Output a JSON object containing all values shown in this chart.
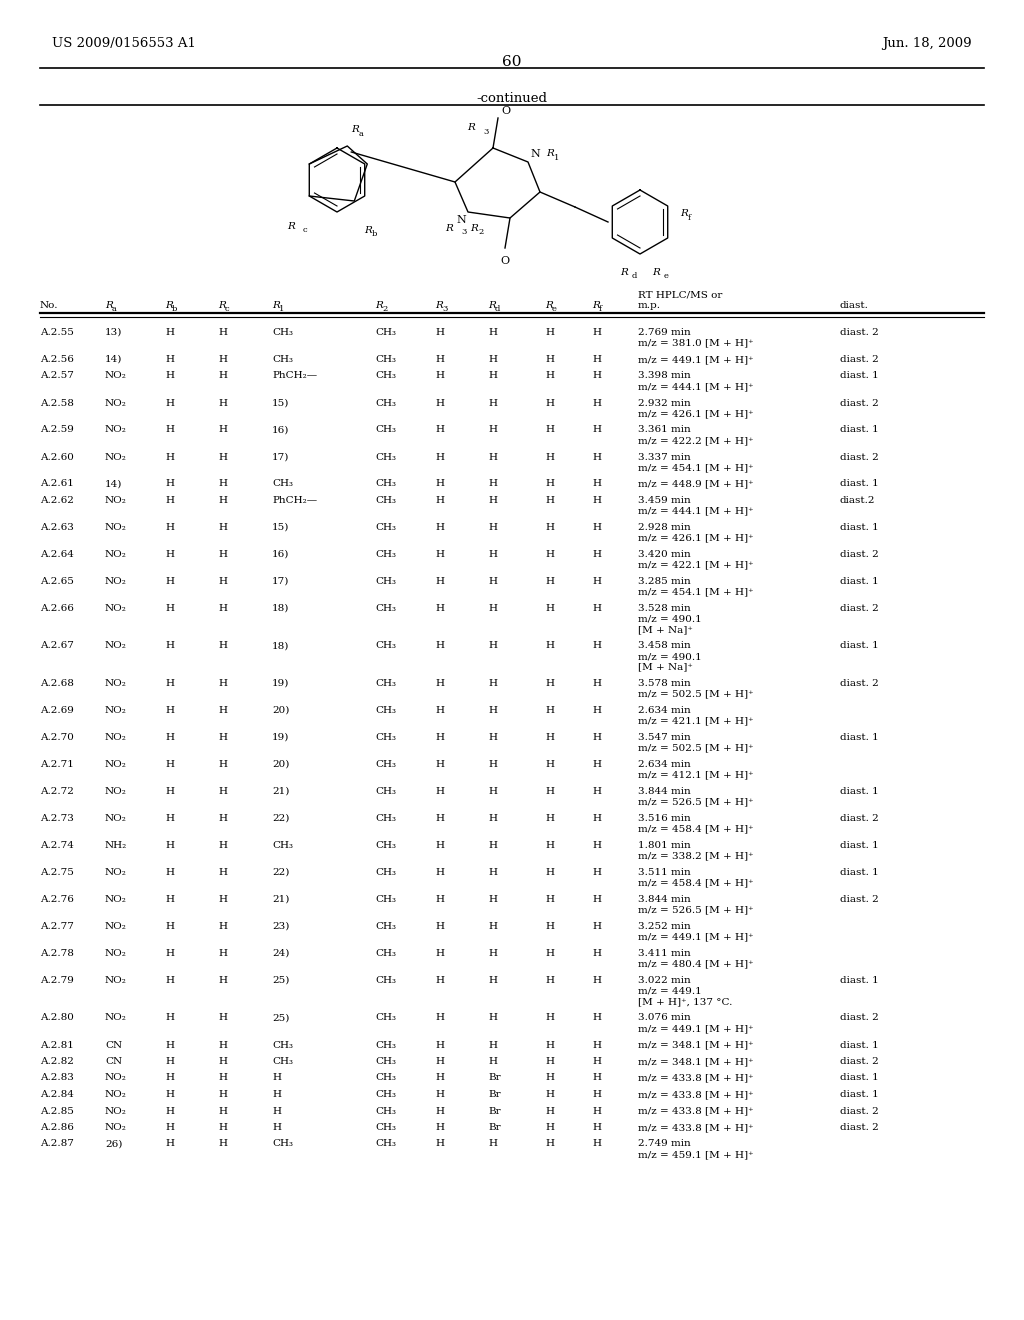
{
  "header_left": "US 2009/0156553 A1",
  "header_right": "Jun. 18, 2009",
  "page_number": "60",
  "continued_text": "-continued",
  "rows": [
    [
      "A.2.55",
      "13)",
      "H",
      "H",
      "CH₃",
      "CH₃",
      "H",
      "H",
      "H",
      "H",
      "2.769 min\nm/z = 381.0 [M + H]⁺",
      "diast. 2"
    ],
    [
      "A.2.56",
      "14)",
      "H",
      "H",
      "CH₃",
      "CH₃",
      "H",
      "H",
      "H",
      "H",
      "m/z = 449.1 [M + H]⁺",
      "diast. 2"
    ],
    [
      "A.2.57",
      "NO₂",
      "H",
      "H",
      "PhCH₂—",
      "CH₃",
      "H",
      "H",
      "H",
      "H",
      "3.398 min\nm/z = 444.1 [M + H]⁺",
      "diast. 1"
    ],
    [
      "A.2.58",
      "NO₂",
      "H",
      "H",
      "15)",
      "CH₃",
      "H",
      "H",
      "H",
      "H",
      "2.932 min\nm/z = 426.1 [M + H]⁺",
      "diast. 2"
    ],
    [
      "A.2.59",
      "NO₂",
      "H",
      "H",
      "16)",
      "CH₃",
      "H",
      "H",
      "H",
      "H",
      "3.361 min\nm/z = 422.2 [M + H]⁺",
      "diast. 1"
    ],
    [
      "A.2.60",
      "NO₂",
      "H",
      "H",
      "17)",
      "CH₃",
      "H",
      "H",
      "H",
      "H",
      "3.337 min\nm/z = 454.1 [M + H]⁺",
      "diast. 2"
    ],
    [
      "A.2.61",
      "14)",
      "H",
      "H",
      "CH₃",
      "CH₃",
      "H",
      "H",
      "H",
      "H",
      "m/z = 448.9 [M + H]⁺",
      "diast. 1"
    ],
    [
      "A.2.62",
      "NO₂",
      "H",
      "H",
      "PhCH₂—",
      "CH₃",
      "H",
      "H",
      "H",
      "H",
      "3.459 min\nm/z = 444.1 [M + H]⁺",
      "diast.2"
    ],
    [
      "A.2.63",
      "NO₂",
      "H",
      "H",
      "15)",
      "CH₃",
      "H",
      "H",
      "H",
      "H",
      "2.928 min\nm/z = 426.1 [M + H]⁺",
      "diast. 1"
    ],
    [
      "A.2.64",
      "NO₂",
      "H",
      "H",
      "16)",
      "CH₃",
      "H",
      "H",
      "H",
      "H",
      "3.420 min\nm/z = 422.1 [M + H]⁺",
      "diast. 2"
    ],
    [
      "A.2.65",
      "NO₂",
      "H",
      "H",
      "17)",
      "CH₃",
      "H",
      "H",
      "H",
      "H",
      "3.285 min\nm/z = 454.1 [M + H]⁺",
      "diast. 1"
    ],
    [
      "A.2.66",
      "NO₂",
      "H",
      "H",
      "18)",
      "CH₃",
      "H",
      "H",
      "H",
      "H",
      "3.528 min\nm/z = 490.1\n[M + Na]⁺",
      "diast. 2"
    ],
    [
      "A.2.67",
      "NO₂",
      "H",
      "H",
      "18)",
      "CH₃",
      "H",
      "H",
      "H",
      "H",
      "3.458 min\nm/z = 490.1\n[M + Na]⁺",
      "diast. 1"
    ],
    [
      "A.2.68",
      "NO₂",
      "H",
      "H",
      "19)",
      "CH₃",
      "H",
      "H",
      "H",
      "H",
      "3.578 min\nm/z = 502.5 [M + H]⁺",
      "diast. 2"
    ],
    [
      "A.2.69",
      "NO₂",
      "H",
      "H",
      "20)",
      "CH₃",
      "H",
      "H",
      "H",
      "H",
      "2.634 min\nm/z = 421.1 [M + H]⁺",
      ""
    ],
    [
      "A.2.70",
      "NO₂",
      "H",
      "H",
      "19)",
      "CH₃",
      "H",
      "H",
      "H",
      "H",
      "3.547 min\nm/z = 502.5 [M + H]⁺",
      "diast. 1"
    ],
    [
      "A.2.71",
      "NO₂",
      "H",
      "H",
      "20)",
      "CH₃",
      "H",
      "H",
      "H",
      "H",
      "2.634 min\nm/z = 412.1 [M + H]⁺",
      ""
    ],
    [
      "A.2.72",
      "NO₂",
      "H",
      "H",
      "21)",
      "CH₃",
      "H",
      "H",
      "H",
      "H",
      "3.844 min\nm/z = 526.5 [M + H]⁺",
      "diast. 1"
    ],
    [
      "A.2.73",
      "NO₂",
      "H",
      "H",
      "22)",
      "CH₃",
      "H",
      "H",
      "H",
      "H",
      "3.516 min\nm/z = 458.4 [M + H]⁺",
      "diast. 2"
    ],
    [
      "A.2.74",
      "NH₂",
      "H",
      "H",
      "CH₃",
      "CH₃",
      "H",
      "H",
      "H",
      "H",
      "1.801 min\nm/z = 338.2 [M + H]⁺",
      "diast. 1"
    ],
    [
      "A.2.75",
      "NO₂",
      "H",
      "H",
      "22)",
      "CH₃",
      "H",
      "H",
      "H",
      "H",
      "3.511 min\nm/z = 458.4 [M + H]⁺",
      "diast. 1"
    ],
    [
      "A.2.76",
      "NO₂",
      "H",
      "H",
      "21)",
      "CH₃",
      "H",
      "H",
      "H",
      "H",
      "3.844 min\nm/z = 526.5 [M + H]⁺",
      "diast. 2"
    ],
    [
      "A.2.77",
      "NO₂",
      "H",
      "H",
      "23)",
      "CH₃",
      "H",
      "H",
      "H",
      "H",
      "3.252 min\nm/z = 449.1 [M + H]⁺",
      ""
    ],
    [
      "A.2.78",
      "NO₂",
      "H",
      "H",
      "24)",
      "CH₃",
      "H",
      "H",
      "H",
      "H",
      "3.411 min\nm/z = 480.4 [M + H]⁺",
      ""
    ],
    [
      "A.2.79",
      "NO₂",
      "H",
      "H",
      "25)",
      "CH₃",
      "H",
      "H",
      "H",
      "H",
      "3.022 min\nm/z = 449.1\n[M + H]⁺, 137 °C.",
      "diast. 1"
    ],
    [
      "A.2.80",
      "NO₂",
      "H",
      "H",
      "25)",
      "CH₃",
      "H",
      "H",
      "H",
      "H",
      "3.076 min\nm/z = 449.1 [M + H]⁺",
      "diast. 2"
    ],
    [
      "A.2.81",
      "CN",
      "H",
      "H",
      "CH₃",
      "CH₃",
      "H",
      "H",
      "H",
      "H",
      "m/z = 348.1 [M + H]⁺",
      "diast. 1"
    ],
    [
      "A.2.82",
      "CN",
      "H",
      "H",
      "CH₃",
      "CH₃",
      "H",
      "H",
      "H",
      "H",
      "m/z = 348.1 [M + H]⁺",
      "diast. 2"
    ],
    [
      "A.2.83",
      "NO₂",
      "H",
      "H",
      "H",
      "CH₃",
      "H",
      "Br",
      "H",
      "H",
      "m/z = 433.8 [M + H]⁺",
      "diast. 1"
    ],
    [
      "A.2.84",
      "NO₂",
      "H",
      "H",
      "H",
      "CH₃",
      "H",
      "Br",
      "H",
      "H",
      "m/z = 433.8 [M + H]⁺",
      "diast. 1"
    ],
    [
      "A.2.85",
      "NO₂",
      "H",
      "H",
      "H",
      "CH₃",
      "H",
      "Br",
      "H",
      "H",
      "m/z = 433.8 [M + H]⁺",
      "diast. 2"
    ],
    [
      "A.2.86",
      "NO₂",
      "H",
      "H",
      "H",
      "CH₃",
      "H",
      "Br",
      "H",
      "H",
      "m/z = 433.8 [M + H]⁺",
      "diast. 2"
    ],
    [
      "A.2.87",
      "26)",
      "H",
      "H",
      "CH₃",
      "CH₃",
      "H",
      "H",
      "H",
      "H",
      "2.749 min\nm/z = 459.1 [M + H]⁺",
      ""
    ]
  ]
}
